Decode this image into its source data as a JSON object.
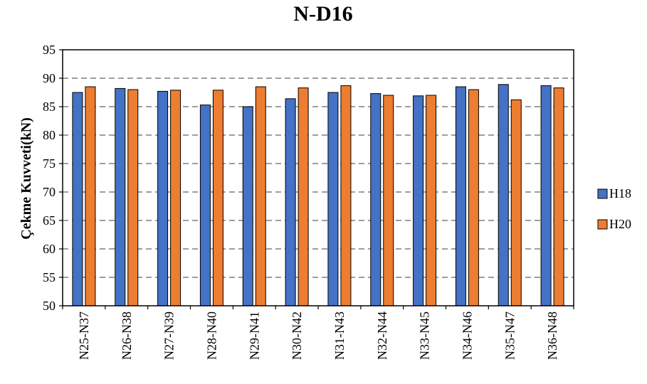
{
  "chart_data": {
    "type": "bar",
    "title": "N-D16",
    "xlabel": "",
    "ylabel": "Çekme Kuvveti(kN)",
    "ylim": [
      50,
      95
    ],
    "yticks": [
      50,
      55,
      60,
      65,
      70,
      75,
      80,
      85,
      90,
      95
    ],
    "grid": "horizontal dashed",
    "legend_position": "right",
    "categories": [
      "N25-N37",
      "N26-N38",
      "N27-N39",
      "N28-N40",
      "N29-N41",
      "N30-N42",
      "N31-N43",
      "N32-N44",
      "N33-N45",
      "N34-N46",
      "N35-N47",
      "N36-N48"
    ],
    "series": [
      {
        "name": "H18",
        "color": "#4472c4",
        "values": [
          87.5,
          88.2,
          87.7,
          85.3,
          85.0,
          86.4,
          87.5,
          87.3,
          86.9,
          88.5,
          88.9,
          88.7
        ]
      },
      {
        "name": "H20",
        "color": "#ed7d31",
        "values": [
          88.5,
          88.0,
          87.9,
          87.9,
          88.5,
          88.3,
          88.7,
          87.0,
          87.0,
          88.0,
          86.2,
          88.3
        ]
      }
    ]
  }
}
